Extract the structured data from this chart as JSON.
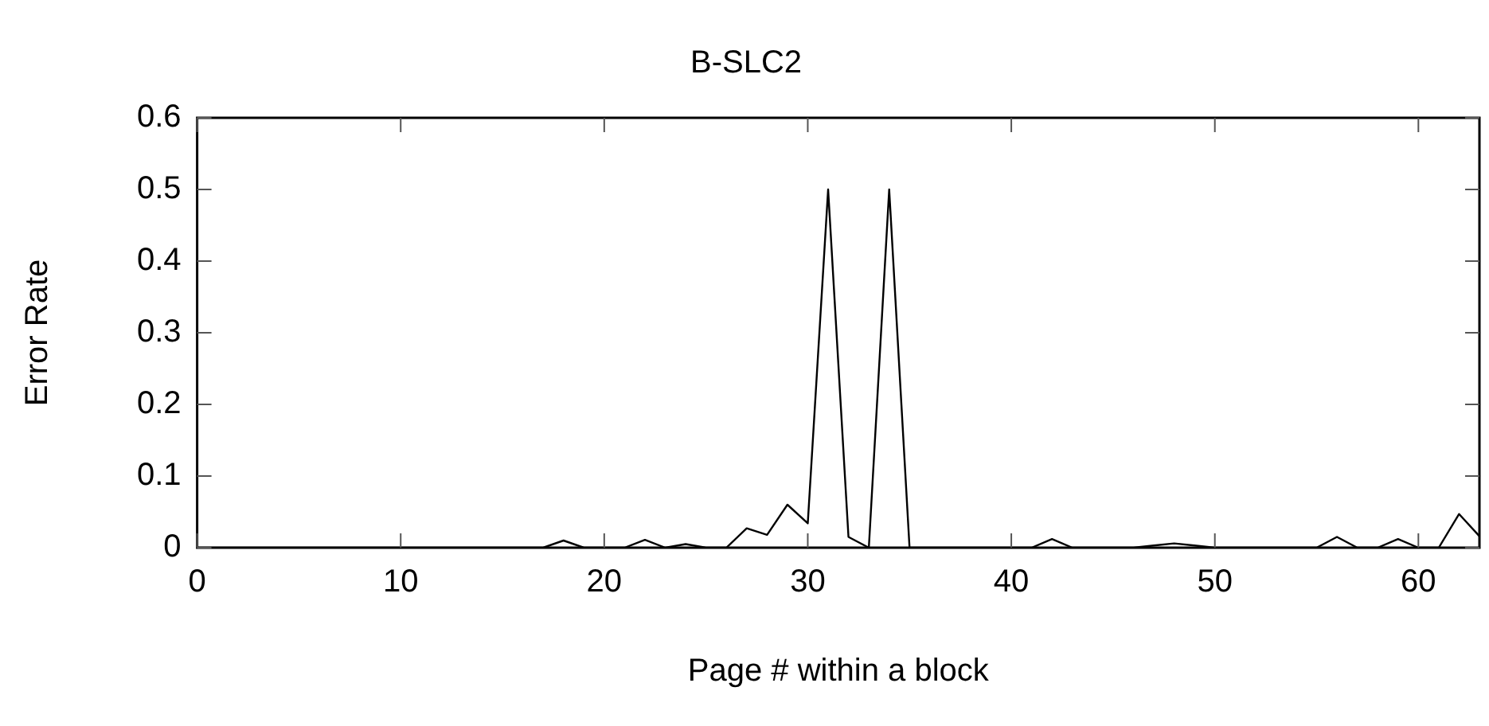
{
  "chart_data": {
    "type": "line",
    "title": "B-SLC2",
    "xlabel": "Page # within a block",
    "ylabel": "Error Rate",
    "x": [
      0,
      1,
      2,
      3,
      4,
      5,
      6,
      7,
      8,
      9,
      10,
      11,
      12,
      13,
      14,
      15,
      16,
      17,
      18,
      19,
      20,
      21,
      22,
      23,
      24,
      25,
      26,
      27,
      28,
      29,
      30,
      31,
      32,
      33,
      34,
      35,
      36,
      37,
      38,
      39,
      40,
      41,
      42,
      43,
      44,
      45,
      46,
      47,
      48,
      49,
      50,
      51,
      52,
      53,
      54,
      55,
      56,
      57,
      58,
      59,
      60,
      61,
      62,
      63
    ],
    "series": [
      {
        "color": "#000000",
        "values": [
          0,
          0,
          0,
          0,
          0,
          0,
          0,
          0,
          0,
          0,
          0,
          0,
          0,
          0,
          0,
          0,
          0,
          0,
          0.01,
          0,
          0,
          0,
          0.011,
          0,
          0.005,
          0,
          0,
          0.027,
          0.018,
          0.06,
          0.034,
          0.5,
          0.015,
          0,
          0.5,
          0,
          0,
          0,
          0,
          0,
          0,
          0,
          0.012,
          0,
          0,
          0,
          0,
          0.003,
          0.006,
          0.003,
          0,
          0,
          0,
          0,
          0,
          0,
          0.015,
          0,
          0,
          0.012,
          0,
          0,
          0.047,
          0.016
        ]
      }
    ],
    "xlim": [
      0,
      63
    ],
    "xticks": [
      0,
      10,
      20,
      30,
      40,
      50,
      60
    ],
    "ylim": [
      0,
      0.6
    ],
    "yticks": [
      0,
      0.1,
      0.2,
      0.3,
      0.4,
      0.5,
      0.6
    ],
    "grid": false,
    "legend": false,
    "marker": "none",
    "line_style": "solid"
  }
}
